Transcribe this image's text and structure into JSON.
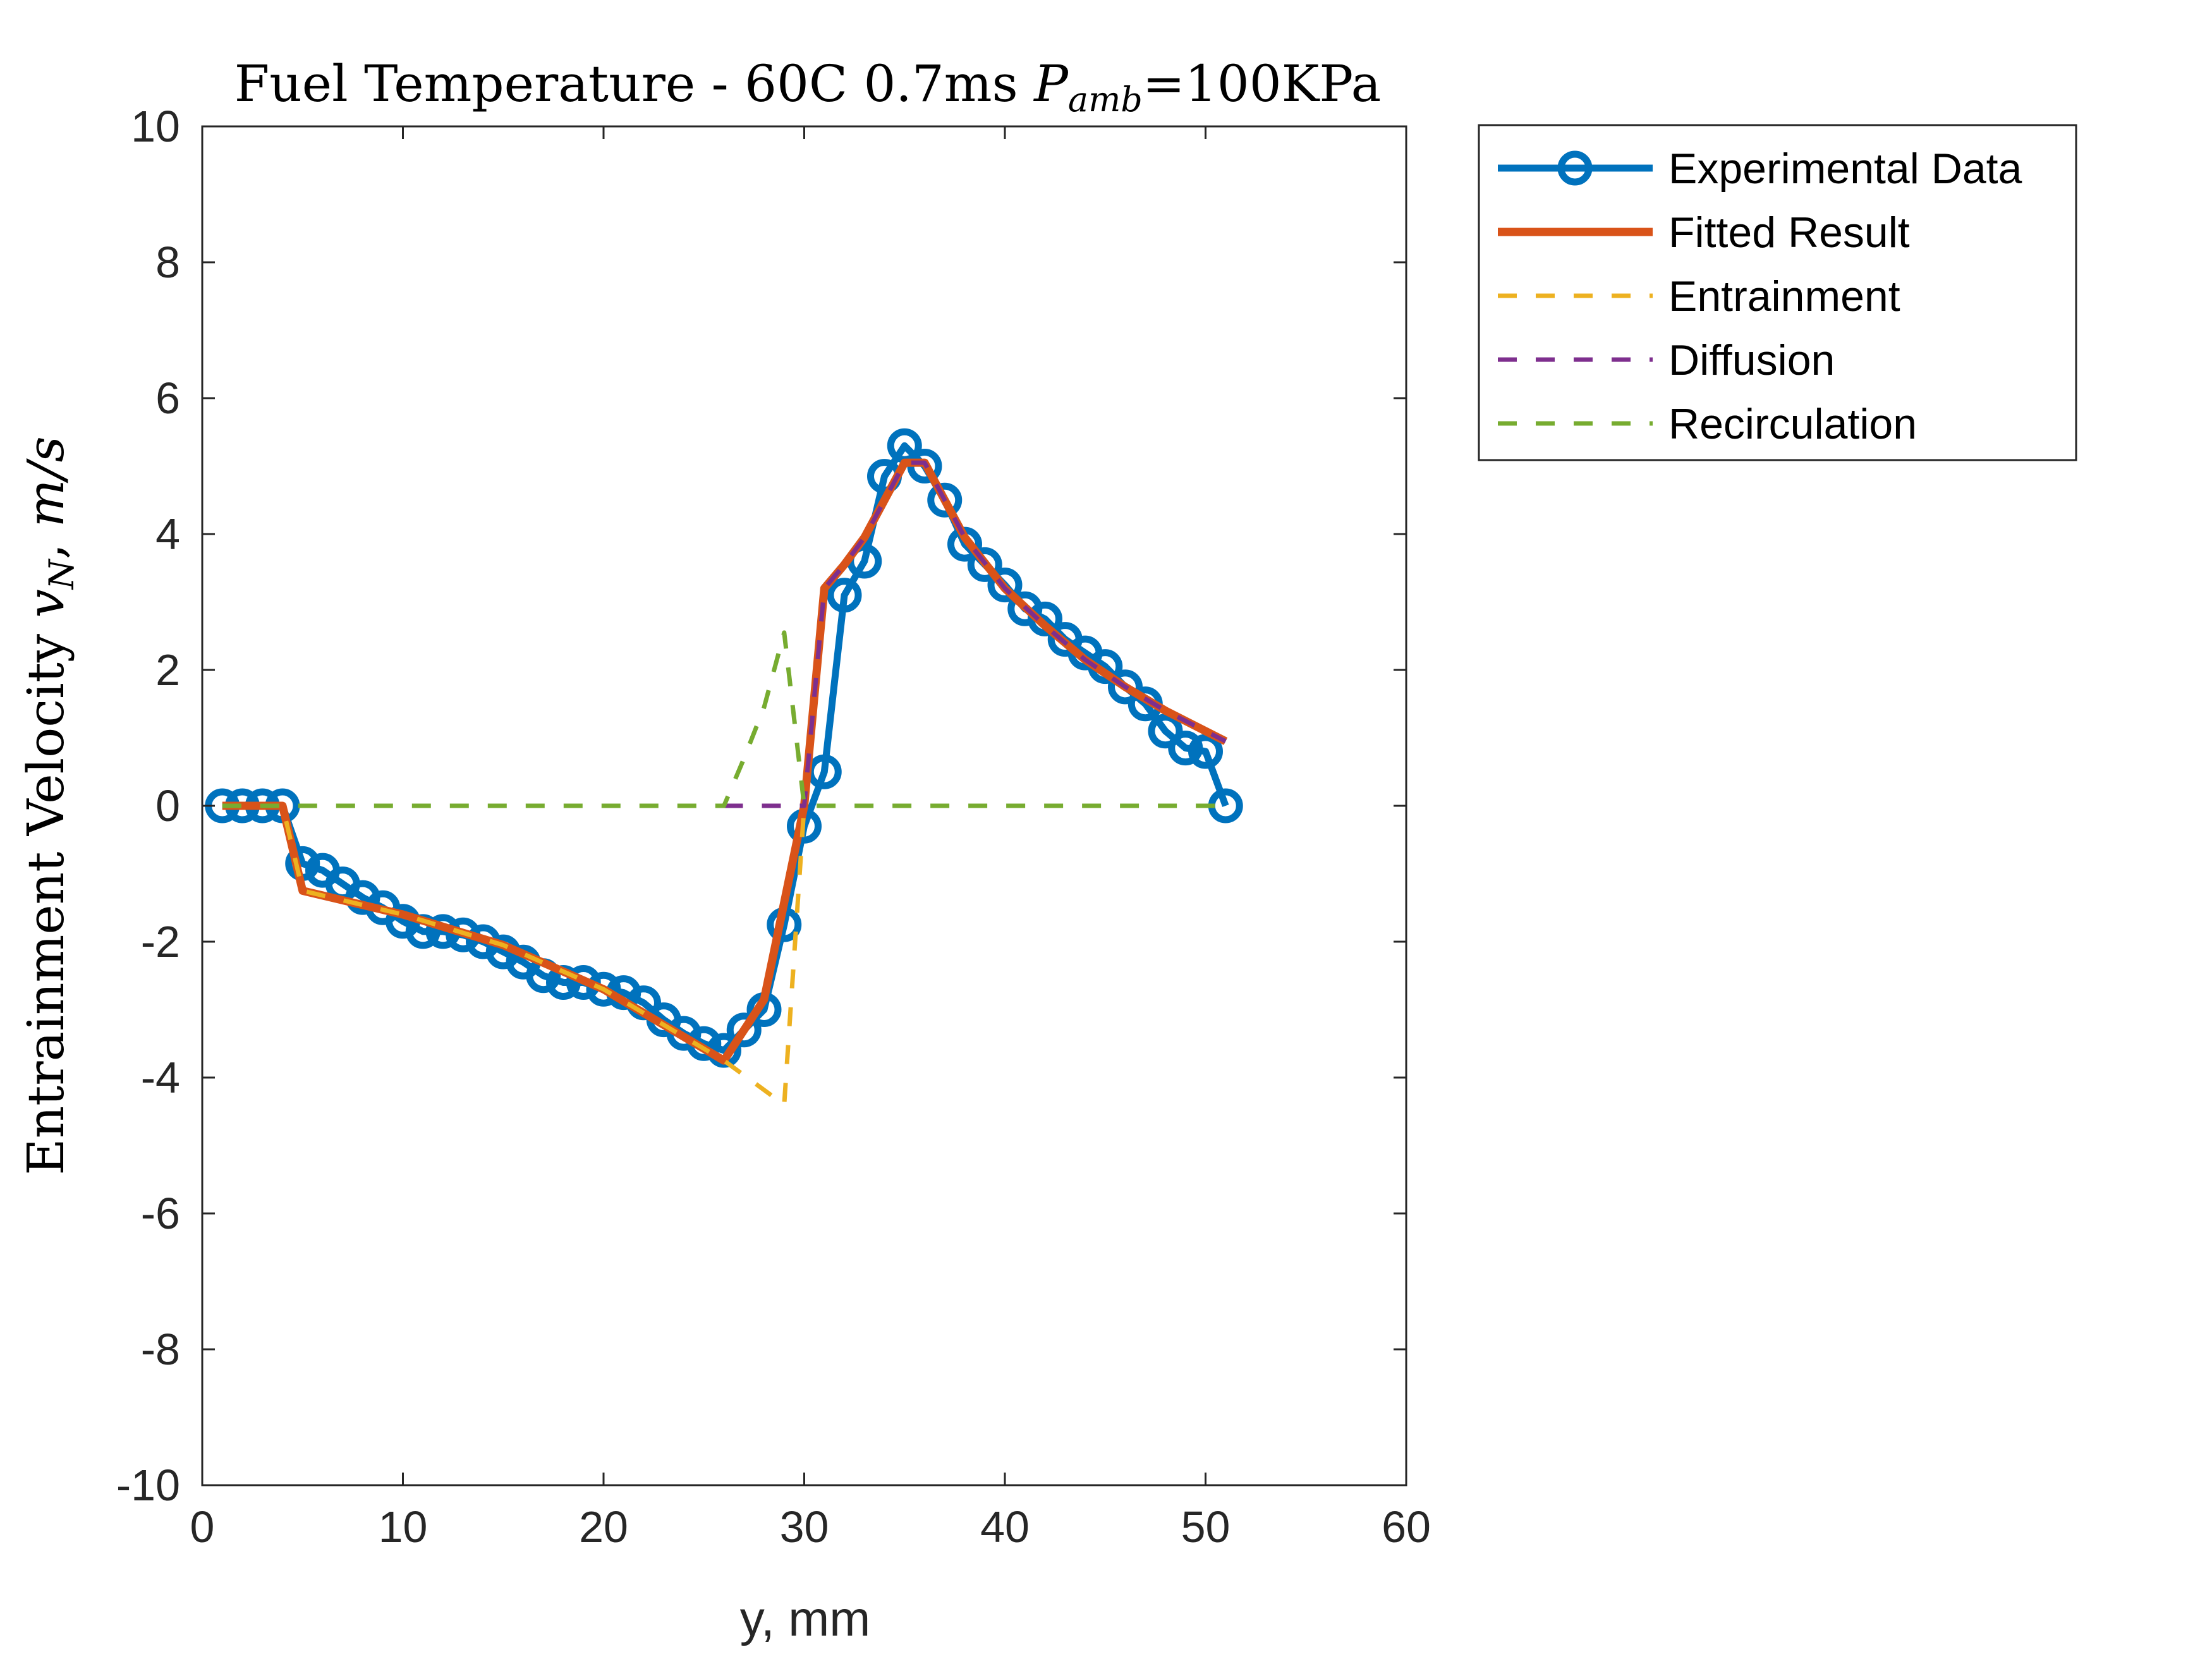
{
  "chart_data": {
    "type": "line",
    "title": {
      "prefix": "Fuel Temperature - 60C 0.7ms ",
      "var": "P",
      "sub": "amb",
      "suffix": "=100KPa"
    },
    "xlabel": "y, mm",
    "ylabel": {
      "prefix": "Entrainment Velocity ",
      "var": "v",
      "sub": "N",
      "suffix": ", ",
      "units": "m/s"
    },
    "xlim": [
      0,
      60
    ],
    "ylim": [
      -10,
      10
    ],
    "xticks": [
      0,
      10,
      20,
      30,
      40,
      50,
      60
    ],
    "yticks": [
      -10,
      -8,
      -6,
      -4,
      -2,
      0,
      2,
      4,
      6,
      8,
      10
    ],
    "grid": false,
    "legend_position": "outside-top-right",
    "series": [
      {
        "name": "Experimental Data",
        "color": "#0072BD",
        "style": "solid-with-circle-markers",
        "x": [
          1,
          2,
          3,
          4,
          5,
          6,
          7,
          8,
          9,
          10,
          11,
          12,
          13,
          14,
          15,
          16,
          17,
          18,
          19,
          20,
          21,
          22,
          23,
          24,
          25,
          26,
          27,
          28,
          29,
          30,
          31,
          32,
          33,
          34,
          35,
          36,
          37,
          38,
          39,
          40,
          41,
          42,
          43,
          44,
          45,
          46,
          47,
          48,
          49,
          50,
          51
        ],
        "y": [
          0,
          0,
          0,
          0,
          -0.85,
          -0.95,
          -1.15,
          -1.35,
          -1.5,
          -1.7,
          -1.85,
          -1.85,
          -1.9,
          -2.0,
          -2.15,
          -2.3,
          -2.5,
          -2.6,
          -2.6,
          -2.7,
          -2.75,
          -2.9,
          -3.15,
          -3.35,
          -3.5,
          -3.6,
          -3.3,
          -3.0,
          -1.75,
          -0.3,
          0.5,
          3.1,
          3.6,
          4.85,
          5.3,
          5.0,
          4.5,
          3.85,
          3.55,
          3.25,
          2.9,
          2.75,
          2.45,
          2.25,
          2.05,
          1.75,
          1.5,
          1.1,
          0.85,
          0.8,
          0.0
        ]
      },
      {
        "name": "Fitted Result",
        "color": "#D95319",
        "style": "solid",
        "x": [
          1,
          4,
          5,
          10,
          15,
          20,
          26,
          28,
          30,
          31,
          32,
          33,
          34,
          35,
          36,
          37,
          38,
          40,
          42,
          44,
          46,
          48,
          50,
          51
        ],
        "y": [
          0,
          0,
          -1.25,
          -1.6,
          -2.05,
          -2.7,
          -3.75,
          -2.85,
          0.0,
          3.2,
          3.55,
          3.95,
          4.5,
          5.05,
          5.05,
          4.5,
          3.95,
          3.2,
          2.65,
          2.15,
          1.75,
          1.4,
          1.1,
          0.95
        ]
      },
      {
        "name": "Entrainment",
        "color": "#EDB120",
        "style": "dashed",
        "x": [
          1,
          4,
          5,
          10,
          15,
          20,
          26,
          29,
          30
        ],
        "y": [
          0,
          0,
          -1.25,
          -1.6,
          -2.05,
          -2.7,
          -3.75,
          -4.4,
          0.0
        ]
      },
      {
        "name": "Diffusion",
        "color": "#7E2F8E",
        "style": "dashed",
        "x": [
          26,
          30,
          31,
          32,
          33,
          34,
          35,
          36,
          37,
          38,
          40,
          42,
          44,
          46,
          48,
          50,
          51
        ],
        "y": [
          0,
          0,
          3.2,
          3.55,
          3.95,
          4.5,
          5.05,
          5.05,
          4.5,
          3.95,
          3.2,
          2.65,
          2.15,
          1.75,
          1.4,
          1.1,
          0.95
        ]
      },
      {
        "name": "Recirculation",
        "color": "#77AC30",
        "style": "dashed",
        "x": [
          1,
          26,
          27,
          28,
          29,
          30,
          51
        ],
        "y": [
          0,
          0,
          0.7,
          1.45,
          2.55,
          0,
          0
        ]
      }
    ]
  }
}
